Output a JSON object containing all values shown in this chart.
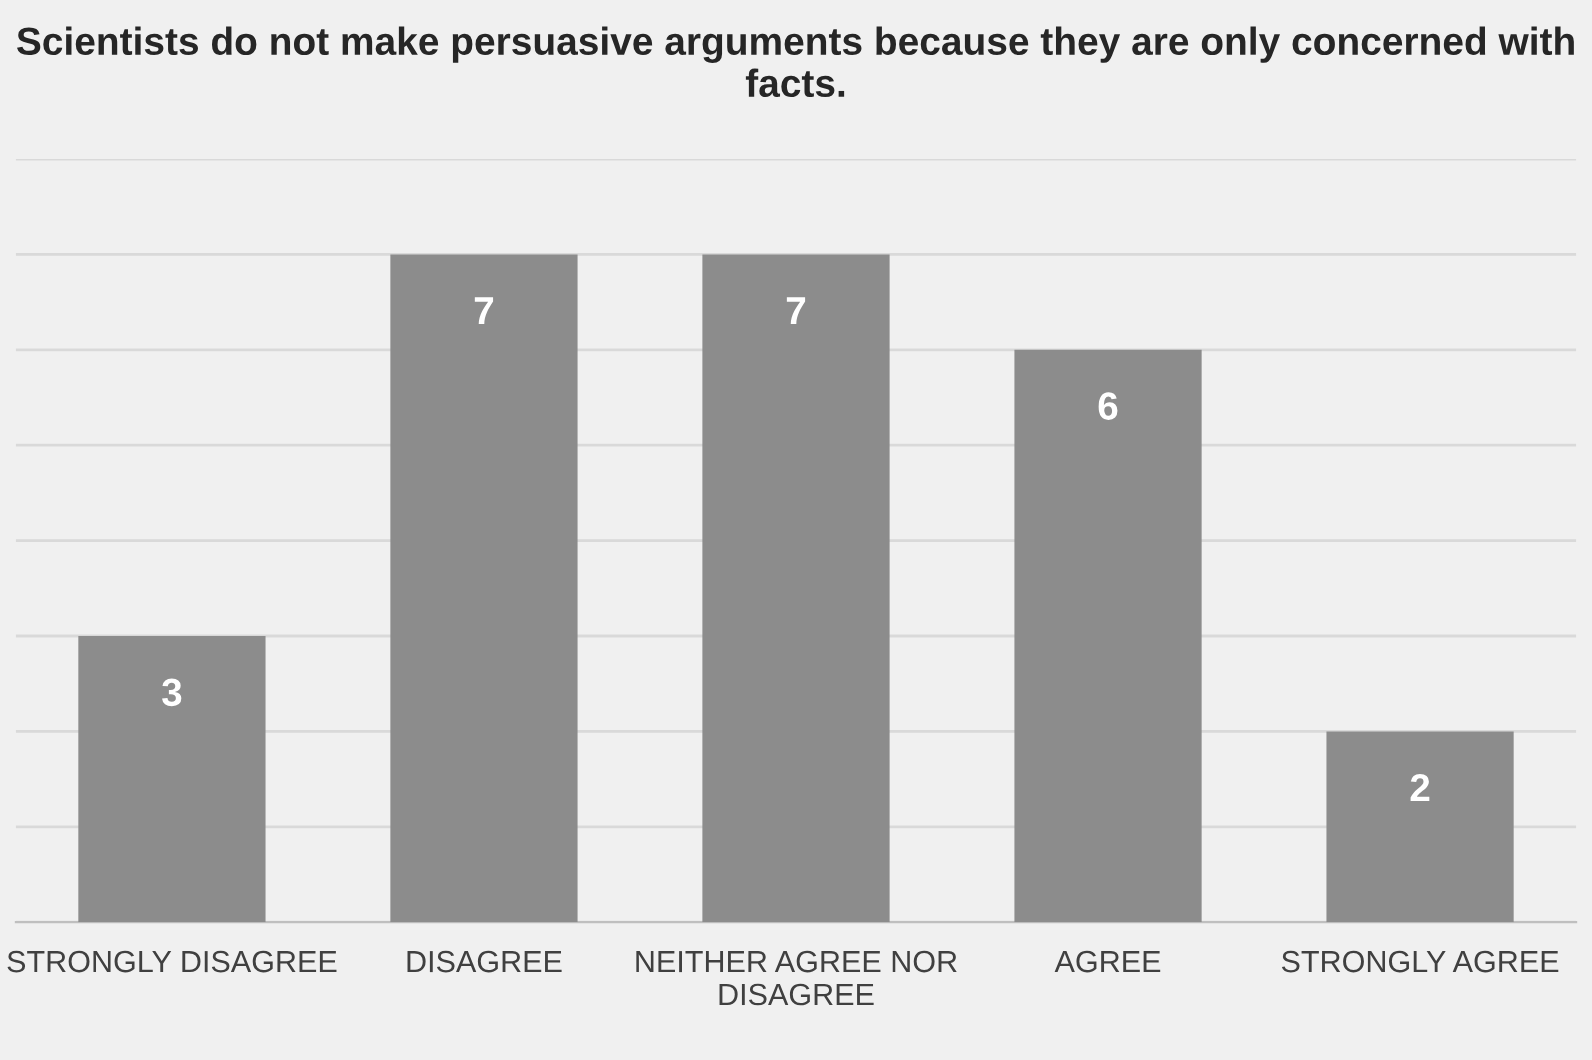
{
  "chart_data": {
    "type": "bar",
    "title": "Scientists do not make persuasive arguments because they are only concerned with facts.",
    "categories": [
      "STRONGLY DISAGREE",
      "DISAGREE",
      "NEITHER AGREE NOR DISAGREE",
      "AGREE",
      "STRONGLY AGREE"
    ],
    "values": [
      3,
      7,
      7,
      6,
      2
    ],
    "color": "#8c8c8c",
    "data_labels": true,
    "ylim": [
      0,
      8
    ],
    "yticks": [
      {
        "value": 0,
        "label": null
      },
      {
        "value": 1,
        "label": null
      },
      {
        "value": 2,
        "label": null
      },
      {
        "value": 3,
        "label": null
      },
      {
        "value": 4,
        "label": null
      },
      {
        "value": 5,
        "label": null
      },
      {
        "value": 6,
        "label": null
      },
      {
        "value": 7,
        "label": null
      },
      {
        "value": 8,
        "label": null
      }
    ],
    "grid": "y",
    "tick_labels": "x"
  }
}
